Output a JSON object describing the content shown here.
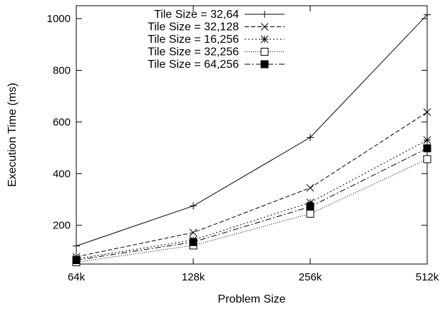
{
  "chart_data": {
    "type": "line",
    "title": "",
    "xlabel": "Problem Size",
    "ylabel": "Execution Time (ms)",
    "categories": [
      "64k",
      "128k",
      "256k",
      "512k"
    ],
    "ylim": [
      50,
      1050
    ],
    "yticks": [
      200,
      400,
      600,
      800,
      1000
    ],
    "grid": false,
    "legend_position": "top-left",
    "series": [
      {
        "name": "Tile Size = 32,64",
        "marker": "plus",
        "dash": "solid",
        "values": [
          120,
          275,
          540,
          1015
        ]
      },
      {
        "name": "Tile Size = 32,128",
        "marker": "cross",
        "dash": "dashed",
        "values": [
          78,
          172,
          345,
          638
        ]
      },
      {
        "name": "Tile Size = 16,256",
        "marker": "star",
        "dash": "dotted",
        "values": [
          70,
          143,
          288,
          530
        ]
      },
      {
        "name": "Tile Size = 32,256",
        "marker": "open-square",
        "dash": "finedot",
        "values": [
          57,
          122,
          245,
          456
        ]
      },
      {
        "name": "Tile Size = 64,256",
        "marker": "filled-square",
        "dash": "dashdot",
        "values": [
          65,
          135,
          272,
          498
        ]
      }
    ]
  }
}
